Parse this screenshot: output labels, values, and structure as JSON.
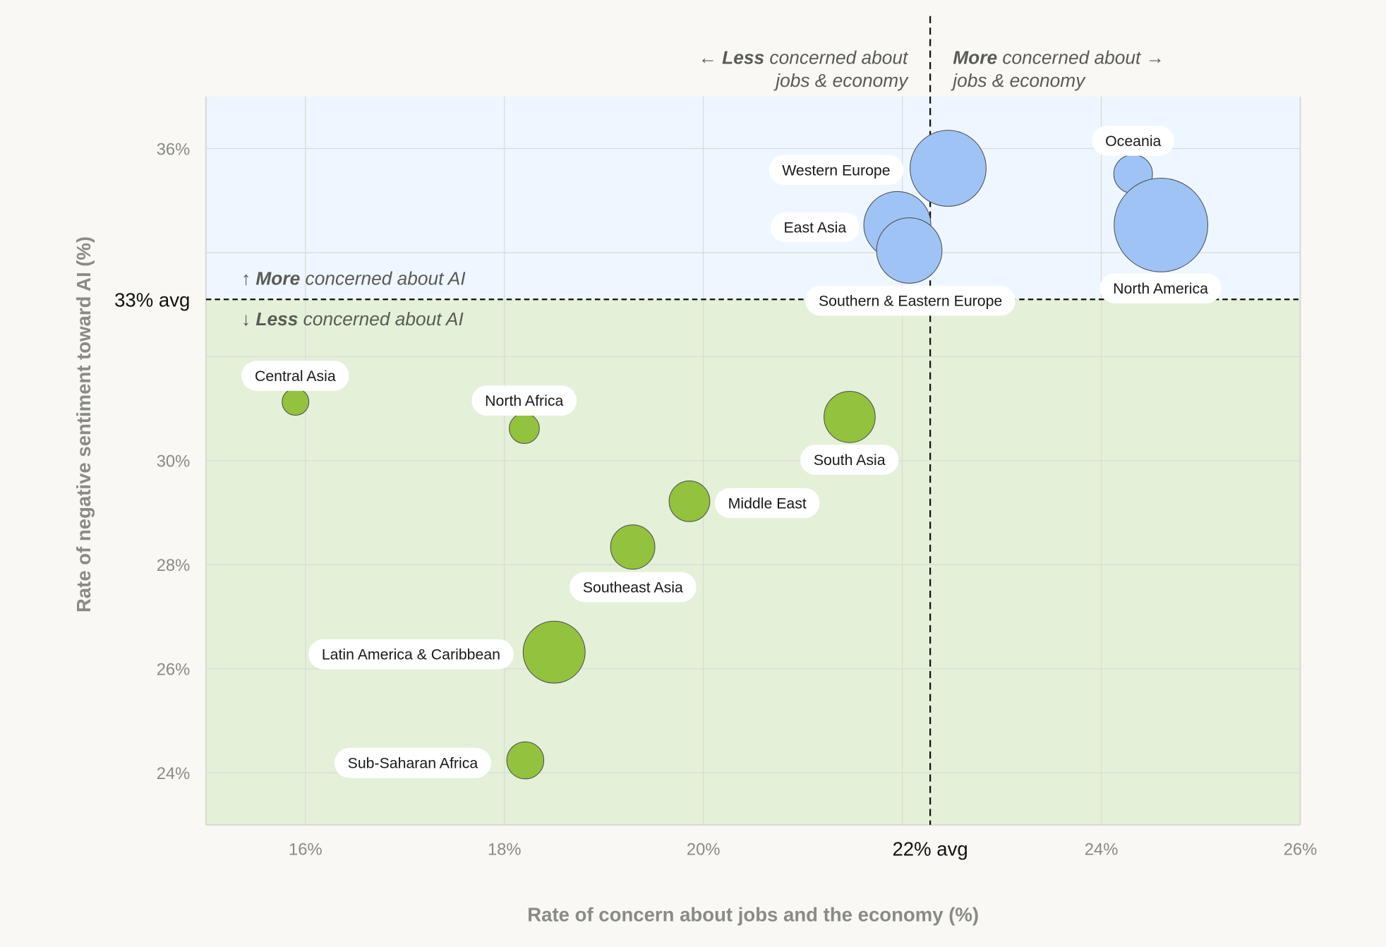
{
  "chart_data": {
    "type": "scatter",
    "subtype": "bubble",
    "xlabel": "Rate of concern about jobs and the economy (%)",
    "ylabel": "Rate of negative sentiment toward AI (%)",
    "xlim": [
      15,
      26
    ],
    "ylim": [
      23,
      37
    ],
    "xticks": [
      {
        "value": 16,
        "label": "16%"
      },
      {
        "value": 18,
        "label": "18%"
      },
      {
        "value": 20,
        "label": "20%"
      },
      {
        "value": 24,
        "label": "24%"
      },
      {
        "value": 26,
        "label": "26%"
      }
    ],
    "yticks": [
      {
        "value": 24,
        "label": "24%"
      },
      {
        "value": 26,
        "label": "26%"
      },
      {
        "value": 28,
        "label": "28%"
      },
      {
        "value": 30,
        "label": "30%"
      },
      {
        "value": 36,
        "label": "36%"
      }
    ],
    "grid": true,
    "x_avg": {
      "value": 22.28,
      "label": "22% avg"
    },
    "y_avg": {
      "value": 33.1,
      "label": "33% avg"
    },
    "quadrant_notes": {
      "left": {
        "bold": "Less",
        "rest": " concerned about",
        "line2": "jobs & economy",
        "arrow": "←"
      },
      "right": {
        "bold": "More",
        "rest": " concerned about",
        "line2": "jobs & economy",
        "arrow": "→"
      },
      "up": {
        "bold": "More",
        "rest": " concerned about AI",
        "arrow": "↑"
      },
      "down": {
        "bold": "Less",
        "rest": " concerned about AI",
        "arrow": "↓"
      }
    },
    "colors": {
      "above_avg": "#9fc3f5",
      "below_avg": "#93c23f",
      "above_bg": "#eef6ff",
      "below_bg": "#e4f0d8",
      "outline": "#4a4a48"
    },
    "points": [
      {
        "name": "Western Europe",
        "x": 22.46,
        "y": 35.62,
        "size": 18.5,
        "group": "above"
      },
      {
        "name": "Oceania",
        "x": 24.32,
        "y": 35.51,
        "size": 4.8,
        "group": "above"
      },
      {
        "name": "North America",
        "x": 24.6,
        "y": 34.53,
        "size": 28.1,
        "group": "above"
      },
      {
        "name": "East Asia",
        "x": 21.95,
        "y": 34.53,
        "size": 14.4,
        "group": "above"
      },
      {
        "name": "Southern & Eastern Europe",
        "x": 22.07,
        "y": 34.04,
        "size": 13.7,
        "group": "above"
      },
      {
        "name": "Central Asia",
        "x": 15.9,
        "y": 31.13,
        "size": 2.3,
        "group": "below"
      },
      {
        "name": "North Africa",
        "x": 18.2,
        "y": 30.62,
        "size": 2.9,
        "group": "below"
      },
      {
        "name": "South Asia",
        "x": 21.47,
        "y": 30.84,
        "size": 8.4,
        "group": "below"
      },
      {
        "name": "Middle East",
        "x": 19.86,
        "y": 29.22,
        "size": 5.3,
        "group": "below"
      },
      {
        "name": "Southeast Asia",
        "x": 19.29,
        "y": 28.34,
        "size": 6.3,
        "group": "below"
      },
      {
        "name": "Latin America & Caribbean",
        "x": 18.5,
        "y": 26.32,
        "size": 12.3,
        "group": "below"
      },
      {
        "name": "Sub-Saharan Africa",
        "x": 18.21,
        "y": 24.24,
        "size": 4.4,
        "group": "below"
      }
    ]
  }
}
